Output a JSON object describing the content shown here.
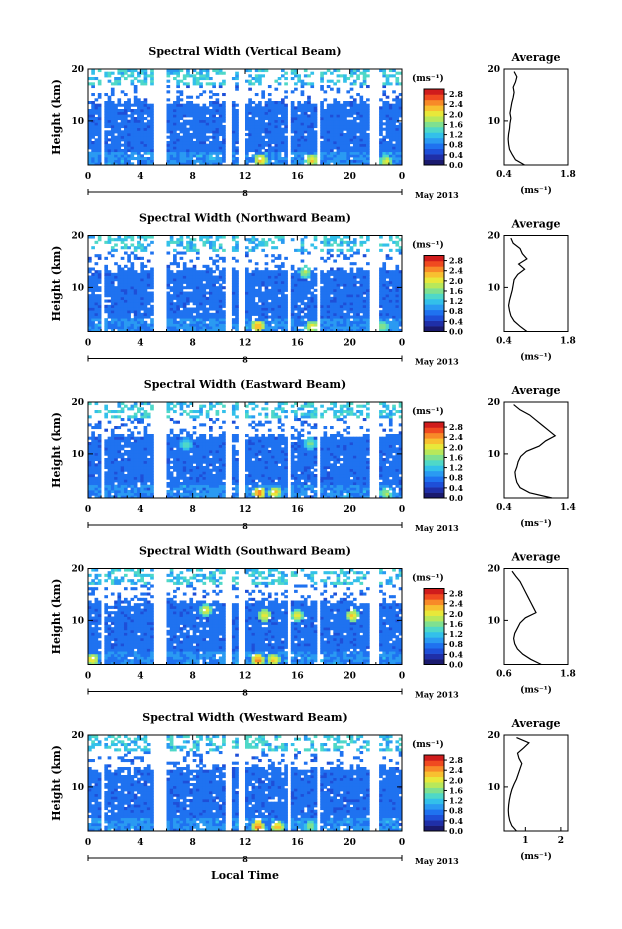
{
  "colors": {
    "colormap": [
      "#1a1a6e",
      "#1f2fa8",
      "#1e4fd8",
      "#1f72f0",
      "#2a9af2",
      "#33c0ea",
      "#4fd8c8",
      "#7fe090",
      "#b8e85a",
      "#e8e83a",
      "#f8c030",
      "#f88a28",
      "#f04a20",
      "#d01c1c"
    ],
    "background": "#ffffff"
  },
  "chart_data": [
    {
      "type": "heatmap",
      "title": "Spectral Width (Vertical Beam)",
      "ylabel": "Height (km)",
      "x_ticks": [
        "0",
        "4",
        "8",
        "12",
        "16",
        "20",
        "0"
      ],
      "x_date_labels": [
        "8"
      ],
      "y_ticks": [
        "20",
        "10"
      ],
      "xlim": [
        0,
        24
      ],
      "ylim": [
        1.5,
        20
      ],
      "colorbar_unit": "(ms⁻¹)",
      "colorbar_ticks": [
        "2.8",
        "2.4",
        "2.0",
        "1.6",
        "1.2",
        "0.8",
        "0.4",
        "0.0"
      ],
      "colorbar_range": [
        0,
        3.0
      ],
      "date_label": "May 2013",
      "gaps_hours": [
        [
          1.0,
          1.3
        ],
        [
          5.1,
          5.9
        ],
        [
          10.6,
          10.9
        ],
        [
          11.5,
          11.9
        ],
        [
          15.3,
          15.6
        ],
        [
          17.5,
          17.8
        ],
        [
          21.5,
          22.2
        ]
      ],
      "hot_spots": [
        {
          "t": 13.2,
          "h": 2.5,
          "v": 2.6
        },
        {
          "t": 17.1,
          "h": 2.5,
          "v": 2.4
        },
        {
          "t": 22.8,
          "h": 2.2,
          "v": 2.2
        },
        {
          "t": 9.5,
          "h": 3.0,
          "v": 1.4
        }
      ],
      "average": {
        "title": "Average",
        "xlabel": "(ms⁻¹)",
        "x_ticks": [
          "0.4",
          "1.8"
        ],
        "xlim": [
          0.4,
          1.8
        ],
        "y_ticks": [
          "20",
          "10"
        ],
        "height": [
          1.5,
          2.5,
          3.5,
          4.5,
          5.5,
          6.5,
          7.5,
          8.5,
          9.5,
          10.5,
          11.5,
          12.5,
          13.5,
          14.5,
          15.5,
          16.5,
          17.5,
          18.5,
          19.5
        ],
        "value": [
          0.85,
          0.65,
          0.58,
          0.52,
          0.5,
          0.49,
          0.5,
          0.52,
          0.53,
          0.55,
          0.53,
          0.55,
          0.57,
          0.6,
          0.62,
          0.6,
          0.65,
          0.68,
          0.62
        ]
      }
    },
    {
      "type": "heatmap",
      "title": "Spectral Width (Northward Beam)",
      "ylabel": "Height (km)",
      "x_ticks": [
        "0",
        "4",
        "8",
        "12",
        "16",
        "20",
        "0"
      ],
      "x_date_labels": [
        "8"
      ],
      "y_ticks": [
        "20",
        "10"
      ],
      "xlim": [
        0,
        24
      ],
      "ylim": [
        1.5,
        20
      ],
      "colorbar_unit": "(ms⁻¹)",
      "colorbar_ticks": [
        "2.8",
        "2.4",
        "2.0",
        "1.6",
        "1.2",
        "0.8",
        "0.4",
        "0.0"
      ],
      "colorbar_range": [
        0,
        3.0
      ],
      "date_label": "May 2013",
      "gaps_hours": [
        [
          1.0,
          1.3
        ],
        [
          5.1,
          5.9
        ],
        [
          10.6,
          10.9
        ],
        [
          11.5,
          11.9
        ],
        [
          15.3,
          15.6
        ],
        [
          17.5,
          17.8
        ],
        [
          21.5,
          22.2
        ]
      ],
      "hot_spots": [
        {
          "t": 13.0,
          "h": 2.6,
          "v": 2.7
        },
        {
          "t": 17.1,
          "h": 2.4,
          "v": 2.4
        },
        {
          "t": 16.6,
          "h": 13.0,
          "v": 2.0
        },
        {
          "t": 22.5,
          "h": 2.4,
          "v": 1.9
        }
      ],
      "average": {
        "title": "Average",
        "xlabel": "(ms⁻¹)",
        "x_ticks": [
          "0.4",
          "1.8"
        ],
        "xlim": [
          0.4,
          1.8
        ],
        "y_ticks": [
          "20",
          "10"
        ],
        "height": [
          1.5,
          2.5,
          3.5,
          4.5,
          5.5,
          6.5,
          7.5,
          8.5,
          9.5,
          10.5,
          11.5,
          12.5,
          13.5,
          14.5,
          15.5,
          16.5,
          17.5,
          18.5,
          19.5
        ],
        "value": [
          0.9,
          0.75,
          0.62,
          0.55,
          0.52,
          0.5,
          0.52,
          0.55,
          0.58,
          0.6,
          0.62,
          0.7,
          0.85,
          0.72,
          0.9,
          0.8,
          0.75,
          0.6,
          0.55
        ]
      }
    },
    {
      "type": "heatmap",
      "title": "Spectral Width (Eastward Beam)",
      "ylabel": "Height (km)",
      "x_ticks": [
        "0",
        "4",
        "8",
        "12",
        "16",
        "20",
        "0"
      ],
      "x_date_labels": [
        "8"
      ],
      "y_ticks": [
        "20",
        "10"
      ],
      "xlim": [
        0,
        24
      ],
      "ylim": [
        1.5,
        20
      ],
      "colorbar_unit": "(ms⁻¹)",
      "colorbar_ticks": [
        "2.8",
        "2.4",
        "2.0",
        "1.6",
        "1.2",
        "0.8",
        "0.4",
        "0.0"
      ],
      "colorbar_range": [
        0,
        3.0
      ],
      "date_label": "May 2013",
      "gaps_hours": [
        [
          1.0,
          1.3
        ],
        [
          5.1,
          5.9
        ],
        [
          10.6,
          10.9
        ],
        [
          11.5,
          11.9
        ],
        [
          15.3,
          15.6
        ],
        [
          17.5,
          17.8
        ],
        [
          21.5,
          22.2
        ]
      ],
      "hot_spots": [
        {
          "t": 13.1,
          "h": 2.5,
          "v": 2.8
        },
        {
          "t": 14.3,
          "h": 2.6,
          "v": 2.4
        },
        {
          "t": 7.5,
          "h": 12.0,
          "v": 1.6
        },
        {
          "t": 17.0,
          "h": 12.0,
          "v": 1.8
        },
        {
          "t": 22.8,
          "h": 2.4,
          "v": 2.0
        }
      ],
      "average": {
        "title": "Average",
        "xlabel": "(ms⁻¹)",
        "x_ticks": [
          "0.4",
          "1.4"
        ],
        "xlim": [
          0.4,
          1.4
        ],
        "y_ticks": [
          "20",
          "10"
        ],
        "height": [
          1.5,
          2.5,
          3.5,
          4.5,
          5.5,
          6.5,
          7.5,
          8.5,
          9.5,
          10.5,
          11.5,
          12.5,
          13.5,
          14.5,
          15.5,
          16.5,
          17.5,
          18.5,
          19.5
        ],
        "value": [
          1.15,
          0.8,
          0.65,
          0.6,
          0.58,
          0.57,
          0.6,
          0.62,
          0.66,
          0.75,
          0.95,
          1.05,
          1.2,
          1.1,
          1.0,
          0.9,
          0.8,
          0.65,
          0.55
        ]
      }
    },
    {
      "type": "heatmap",
      "title": "Spectral Width (Southward Beam)",
      "ylabel": "Height (km)",
      "x_ticks": [
        "0",
        "4",
        "8",
        "12",
        "16",
        "20",
        "0"
      ],
      "x_date_labels": [
        "8"
      ],
      "y_ticks": [
        "20",
        "10"
      ],
      "xlim": [
        0,
        24
      ],
      "ylim": [
        1.5,
        20
      ],
      "colorbar_unit": "(ms⁻¹)",
      "colorbar_ticks": [
        "2.8",
        "2.4",
        "2.0",
        "1.6",
        "1.2",
        "0.8",
        "0.4",
        "0.0"
      ],
      "colorbar_range": [
        0,
        3.0
      ],
      "date_label": "May 2013",
      "gaps_hours": [
        [
          1.0,
          1.3
        ],
        [
          5.1,
          5.9
        ],
        [
          10.6,
          10.9
        ],
        [
          11.5,
          11.9
        ],
        [
          15.3,
          15.6
        ],
        [
          17.5,
          17.8
        ],
        [
          21.5,
          22.2
        ]
      ],
      "hot_spots": [
        {
          "t": 13.0,
          "h": 2.5,
          "v": 2.8
        },
        {
          "t": 14.2,
          "h": 2.4,
          "v": 2.5
        },
        {
          "t": 13.5,
          "h": 11.0,
          "v": 2.4
        },
        {
          "t": 9.0,
          "h": 12.0,
          "v": 2.2
        },
        {
          "t": 20.2,
          "h": 11.0,
          "v": 2.4
        },
        {
          "t": 16.0,
          "h": 11.0,
          "v": 2.2
        },
        {
          "t": 0.3,
          "h": 2.5,
          "v": 2.4
        }
      ],
      "average": {
        "title": "Average",
        "xlabel": "(ms⁻¹)",
        "x_ticks": [
          "0.6",
          "1.8"
        ],
        "xlim": [
          0.6,
          1.8
        ],
        "y_ticks": [
          "20",
          "10"
        ],
        "height": [
          1.5,
          2.5,
          3.5,
          4.5,
          5.5,
          6.5,
          7.5,
          8.5,
          9.5,
          10.5,
          11.5,
          12.5,
          13.5,
          14.5,
          15.5,
          16.5,
          17.5,
          18.5,
          19.5
        ],
        "value": [
          1.3,
          1.1,
          0.95,
          0.85,
          0.8,
          0.78,
          0.8,
          0.85,
          0.9,
          1.0,
          1.2,
          1.15,
          1.1,
          1.05,
          1.0,
          0.95,
          0.9,
          0.82,
          0.75
        ]
      }
    },
    {
      "type": "heatmap",
      "title": "Spectral Width (Westward Beam)",
      "ylabel": "Height (km)",
      "x_ticks": [
        "0",
        "4",
        "8",
        "12",
        "16",
        "20",
        "0"
      ],
      "x_date_labels": [
        "8"
      ],
      "y_ticks": [
        "20",
        "10"
      ],
      "xlim": [
        0,
        24
      ],
      "ylim": [
        1.5,
        20
      ],
      "colorbar_unit": "(ms⁻¹)",
      "colorbar_ticks": [
        "2.8",
        "2.4",
        "2.0",
        "1.6",
        "1.2",
        "0.8",
        "0.4",
        "0.0"
      ],
      "colorbar_range": [
        0,
        3.0
      ],
      "date_label": "May 2013",
      "gaps_hours": [
        [
          1.0,
          1.3
        ],
        [
          5.1,
          5.9
        ],
        [
          10.6,
          10.9
        ],
        [
          11.5,
          11.9
        ],
        [
          15.3,
          15.6
        ],
        [
          17.5,
          17.8
        ],
        [
          21.5,
          22.2
        ]
      ],
      "hot_spots": [
        {
          "t": 13.0,
          "h": 2.5,
          "v": 2.8
        },
        {
          "t": 14.5,
          "h": 2.4,
          "v": 2.5
        },
        {
          "t": 17.0,
          "h": 2.5,
          "v": 1.8
        }
      ],
      "average": {
        "title": "Average",
        "xlabel": "(ms⁻¹)",
        "x_ticks": [
          "1",
          "2"
        ],
        "xlim": [
          0.4,
          2.2
        ],
        "y_ticks": [
          "20",
          "10"
        ],
        "height": [
          1.5,
          2.5,
          3.5,
          4.5,
          5.5,
          6.5,
          7.5,
          8.5,
          9.5,
          10.5,
          11.5,
          12.5,
          13.5,
          14.5,
          15.5,
          16.5,
          17.5,
          18.5,
          19.5
        ],
        "value": [
          0.75,
          0.62,
          0.56,
          0.53,
          0.52,
          0.53,
          0.55,
          0.58,
          0.62,
          0.68,
          0.75,
          0.8,
          0.85,
          0.9,
          0.82,
          0.78,
          0.95,
          1.1,
          0.75
        ]
      }
    }
  ],
  "footer": {
    "xlabel": "Local Time"
  }
}
